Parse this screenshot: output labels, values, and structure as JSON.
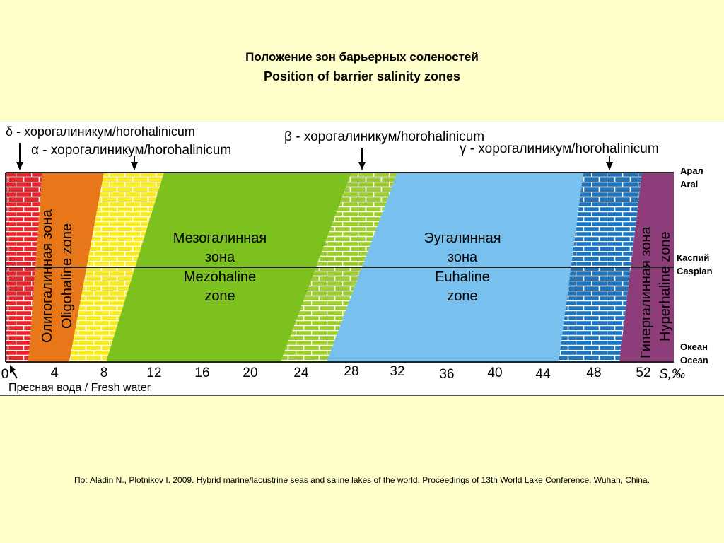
{
  "title": {
    "ru": "Положение зон барьерных соленостей",
    "en": "Position of barrier salinity zones"
  },
  "barrier_labels": {
    "delta": "δ - хорогалиникум/horohalinicum",
    "alpha": "α - хорогалиникум/horohalinicum",
    "beta": "β - хорогалиникум/horohalinicum",
    "gamma": "γ - хорогалиникум/horohalinicum"
  },
  "zones": {
    "oligohaline": {
      "ru": "Олигогалинная зона",
      "en": "Oligohaline zone"
    },
    "mezohaline": {
      "ru1": "Мезогалинная",
      "ru2": "зона",
      "en1": "Mezohaline",
      "en2": "zone"
    },
    "euhaline": {
      "ru1": "Эугалинная",
      "ru2": "зона",
      "en1": "Euhaline",
      "en2": "zone"
    },
    "hyperhaline": {
      "ru": "Гипергалинная зона",
      "en": "Hyperhaline zone"
    }
  },
  "water_bodies": [
    {
      "ru": "Арал",
      "en": "Aral"
    },
    {
      "ru": "Каспий",
      "en": "Caspian"
    },
    {
      "ru": "Океан",
      "en": "Ocean"
    }
  ],
  "axis": {
    "ticks": [
      "0",
      "4",
      "8",
      "12",
      "16",
      "20",
      "24",
      "28",
      "32",
      "36",
      "40",
      "44",
      "48",
      "52"
    ],
    "unit": "S,‰",
    "fresh_water": "Пресная вода / Fresh water"
  },
  "colors": {
    "fresh": "#e8232a",
    "oligohaline": "#e8771a",
    "alpha_band": "#f8ea1c",
    "mezohaline": "#7dc11f",
    "beta_band": "#9ccd2d",
    "euhaline": "#78c1ee",
    "gamma_band": "#1f75bd",
    "hyperhaline": "#8e3d7b"
  },
  "citation": "По: Aladin N., Plotnikov I. 2009. Hybrid marine/lacustrine seas and saline lakes of the world. Proceedings of 13th World Lake Conference. Wuhan, China."
}
